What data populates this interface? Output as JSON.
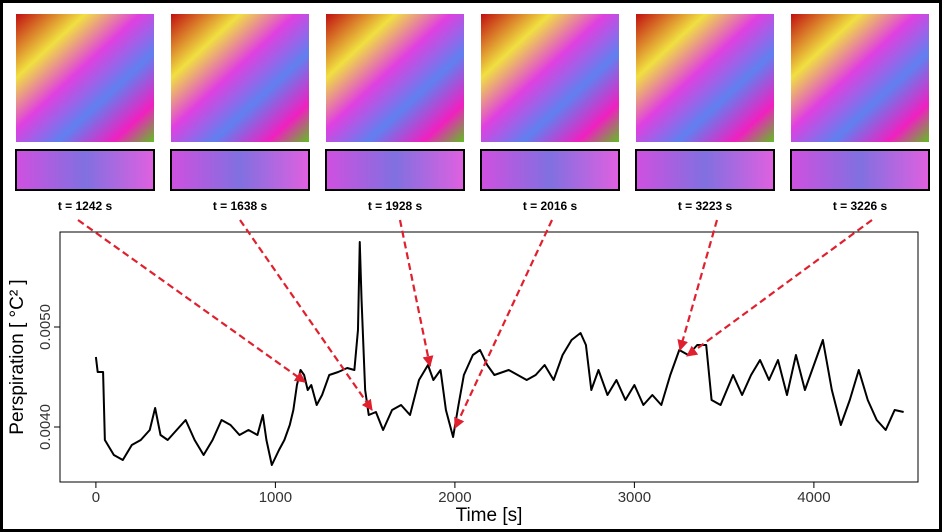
{
  "chart_data": {
    "type": "line",
    "xlabel": "Time [s]",
    "ylabel": "Perspiration [ °C² ]",
    "annotations": [
      "t = 1242 s",
      "t = 1638 s",
      "t = 1928 s",
      "t = 2016 s",
      "t = 3223 s",
      "t = 3226 s"
    ],
    "x": [
      0,
      10,
      40,
      50,
      100,
      150,
      200,
      250,
      300,
      330,
      360,
      400,
      450,
      500,
      550,
      600,
      650,
      700,
      750,
      800,
      850,
      900,
      930,
      950,
      980,
      1020,
      1050,
      1080,
      1100,
      1120,
      1140,
      1160,
      1180,
      1200,
      1230,
      1260,
      1300,
      1350,
      1400,
      1440,
      1460,
      1470,
      1480,
      1500,
      1520,
      1560,
      1600,
      1650,
      1700,
      1750,
      1800,
      1850,
      1880,
      1920,
      1950,
      1990,
      2020,
      2050,
      2100,
      2140,
      2180,
      2220,
      2300,
      2400,
      2450,
      2500,
      2550,
      2600,
      2650,
      2700,
      2730,
      2760,
      2800,
      2850,
      2900,
      2950,
      3000,
      3050,
      3100,
      3150,
      3200,
      3250,
      3300,
      3350,
      3400,
      3430,
      3480,
      3550,
      3600,
      3650,
      3700,
      3750,
      3800,
      3850,
      3900,
      3950,
      4000,
      4050,
      4100,
      4150,
      4200,
      4250,
      4300,
      4350,
      4400,
      4450,
      4500
    ],
    "values": [
      0.0047,
      0.00455,
      0.00455,
      0.00387,
      0.00372,
      0.00367,
      0.00382,
      0.00387,
      0.00397,
      0.00419,
      0.00392,
      0.00387,
      0.00397,
      0.00407,
      0.00387,
      0.00372,
      0.00387,
      0.00407,
      0.00402,
      0.00392,
      0.00397,
      0.00392,
      0.00412,
      0.00387,
      0.00362,
      0.00377,
      0.00387,
      0.00402,
      0.00417,
      0.00442,
      0.00457,
      0.00452,
      0.00437,
      0.00442,
      0.00422,
      0.00432,
      0.00452,
      0.00455,
      0.00459,
      0.00457,
      0.00497,
      0.00585,
      0.00527,
      0.00437,
      0.00412,
      0.00415,
      0.00397,
      0.00417,
      0.00422,
      0.00412,
      0.00447,
      0.00462,
      0.00447,
      0.00457,
      0.00417,
      0.0039,
      0.00422,
      0.00452,
      0.00472,
      0.00477,
      0.00462,
      0.00452,
      0.00457,
      0.00447,
      0.00452,
      0.00462,
      0.00447,
      0.00472,
      0.00487,
      0.00494,
      0.00482,
      0.00437,
      0.00457,
      0.00432,
      0.00447,
      0.00427,
      0.00442,
      0.00422,
      0.00432,
      0.00422,
      0.00452,
      0.00477,
      0.00472,
      0.00482,
      0.00482,
      0.00427,
      0.00422,
      0.00452,
      0.00432,
      0.00452,
      0.00467,
      0.00447,
      0.00467,
      0.00432,
      0.00472,
      0.00437,
      0.00462,
      0.00487,
      0.00437,
      0.00402,
      0.00427,
      0.00457,
      0.00427,
      0.00407,
      0.00397,
      0.00417,
      0.00415
    ],
    "color": "#000000",
    "xlim": [
      -200,
      4580
    ],
    "xticks": [
      0,
      1000,
      2000,
      3000,
      4000
    ],
    "ylim": [
      0.00345,
      0.00595
    ],
    "yticks": [
      {
        "value": 0.004,
        "label": "0.0040"
      },
      {
        "value": 0.005,
        "label": "0.0050"
      }
    ],
    "grid": false
  }
}
